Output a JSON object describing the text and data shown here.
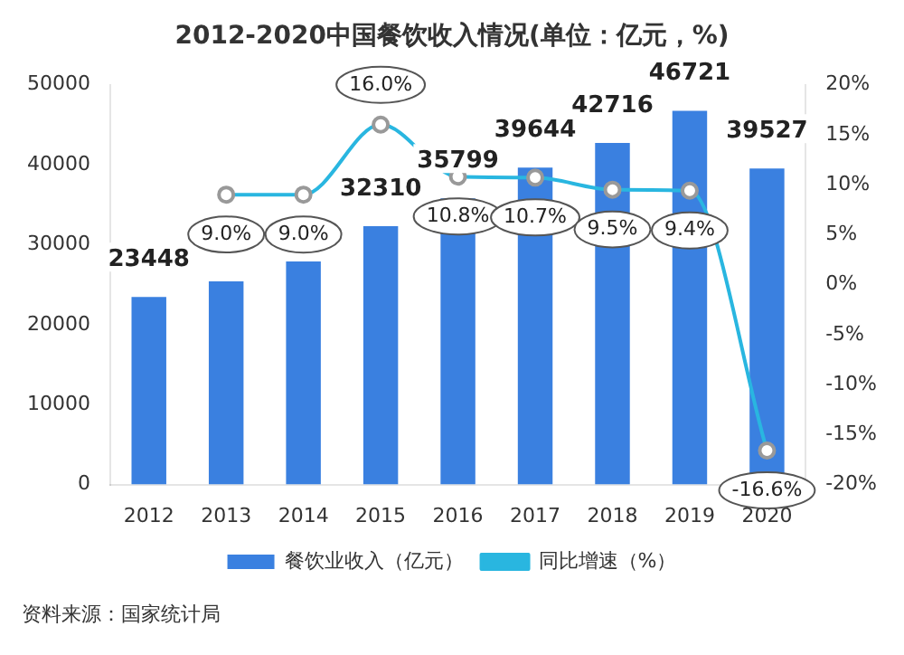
{
  "chart_data": {
    "type": "bar",
    "title": "2012-2020中国餐饮收入情况(单位：亿元，%)",
    "categories": [
      "2012",
      "2013",
      "2014",
      "2015",
      "2016",
      "2017",
      "2018",
      "2019",
      "2020"
    ],
    "series": [
      {
        "name": "餐饮业收入（亿元）",
        "color": "#3a80e0",
        "values": [
          23448,
          25400,
          27900,
          32310,
          35799,
          39644,
          42716,
          46721,
          39527
        ],
        "value_labels": [
          "23448",
          null,
          null,
          "32310",
          "35799",
          "39644",
          "42716",
          "46721",
          "39527"
        ]
      },
      {
        "name": "同比增速（%）",
        "type": "line",
        "axis": "y2",
        "color": "#29b6e0",
        "values": [
          null,
          9.0,
          9.0,
          16.0,
          10.8,
          10.7,
          9.5,
          9.4,
          -16.6
        ],
        "value_labels": [
          null,
          "9.0%",
          "9.0%",
          "16.0%",
          "10.8%",
          "10.7%",
          "9.5%",
          "9.4%",
          "-16.6%"
        ]
      }
    ],
    "ylim": [
      0,
      50000
    ],
    "yticks": [
      0,
      10000,
      20000,
      30000,
      40000,
      50000
    ],
    "y2lim": [
      -20,
      20
    ],
    "y2ticks": [
      {
        "value": -20,
        "label": "-20%"
      },
      {
        "value": -15,
        "label": "-15%"
      },
      {
        "value": -10,
        "label": "-10%"
      },
      {
        "value": -5,
        "label": "-5%"
      },
      {
        "value": 0,
        "label": "0%"
      },
      {
        "value": 5,
        "label": "5%"
      },
      {
        "value": 10,
        "label": "10%"
      },
      {
        "value": 15,
        "label": "15%"
      },
      {
        "value": 20,
        "label": "20%"
      }
    ],
    "grid": false,
    "legend": "bottom",
    "marker": "circle",
    "annotations": [
      "资料来源：国家统计局"
    ]
  }
}
